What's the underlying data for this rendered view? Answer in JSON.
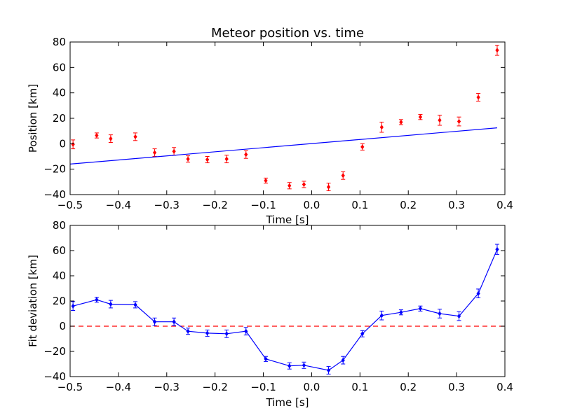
{
  "chart_data": [
    {
      "type": "scatter",
      "title": "Meteor position vs. time",
      "xlabel": "Time [s]",
      "ylabel": "Position [km]",
      "xlim": [
        -0.5,
        0.4
      ],
      "ylim": [
        -40,
        80
      ],
      "xticks": [
        "-0.5",
        "-0.4",
        "-0.3",
        "-0.2",
        "-0.1",
        "0.0",
        "0.1",
        "0.2",
        "0.3",
        "0.4"
      ],
      "yticks": [
        "-40",
        "-20",
        "0",
        "20",
        "40",
        "60",
        "80"
      ],
      "grid": false,
      "series": [
        {
          "kind": "errorbar-points",
          "color": "#ff0000",
          "x": [
            -0.494,
            -0.445,
            -0.416,
            -0.365,
            -0.325,
            -0.285,
            -0.256,
            -0.216,
            -0.176,
            -0.136,
            -0.095,
            -0.046,
            -0.016,
            0.035,
            0.065,
            0.105,
            0.145,
            0.185,
            0.225,
            0.265,
            0.305,
            0.345,
            0.384
          ],
          "y": [
            -0.5,
            6.5,
            4,
            5.5,
            -7,
            -6,
            -12,
            -12.5,
            -12,
            -8.5,
            -29,
            -33,
            -32,
            -34,
            -25,
            -2.5,
            13,
            17,
            21,
            18.5,
            17.5,
            36.5,
            73.5
          ],
          "yerr": [
            3.5,
            2,
            3,
            3,
            3,
            3,
            2.5,
            2.5,
            3,
            3,
            2,
            2.5,
            2.5,
            3,
            3,
            2.5,
            4,
            2,
            2,
            4,
            3.5,
            3,
            4
          ]
        },
        {
          "kind": "line",
          "color": "#0000ff",
          "x": [
            -0.5,
            0.384
          ],
          "y": [
            -16,
            12.5
          ]
        }
      ]
    },
    {
      "type": "line",
      "title": "",
      "xlabel": "Time [s]",
      "ylabel": "Fit deviation [km]",
      "xlim": [
        -0.5,
        0.4
      ],
      "ylim": [
        -40,
        80
      ],
      "xticks": [
        "-0.5",
        "-0.4",
        "-0.3",
        "-0.2",
        "-0.1",
        "0.0",
        "0.1",
        "0.2",
        "0.3",
        "0.4"
      ],
      "yticks": [
        "-40",
        "-20",
        "0",
        "20",
        "40",
        "60",
        "80"
      ],
      "grid": false,
      "reference_line": {
        "y": 0,
        "color": "#ff0000",
        "style": "dashed"
      },
      "series": [
        {
          "kind": "errorbar-line",
          "color": "#0000ff",
          "x": [
            -0.494,
            -0.445,
            -0.416,
            -0.365,
            -0.325,
            -0.285,
            -0.256,
            -0.216,
            -0.176,
            -0.136,
            -0.095,
            -0.046,
            -0.016,
            0.035,
            0.065,
            0.105,
            0.145,
            0.185,
            0.225,
            0.265,
            0.305,
            0.345,
            0.384
          ],
          "y": [
            16,
            21,
            17.5,
            17,
            3.5,
            3.5,
            -4,
            -5.5,
            -6,
            -4,
            -26,
            -31.5,
            -31,
            -35,
            -27,
            -6,
            8.5,
            11,
            14,
            10,
            8,
            26,
            61
          ],
          "yerr": [
            3.5,
            2,
            3,
            2.5,
            3,
            3,
            2.5,
            2.5,
            3,
            3,
            2,
            2.5,
            2.5,
            3,
            3,
            2.5,
            3.5,
            2,
            2,
            3.5,
            3.5,
            3.5,
            4
          ]
        }
      ]
    }
  ]
}
